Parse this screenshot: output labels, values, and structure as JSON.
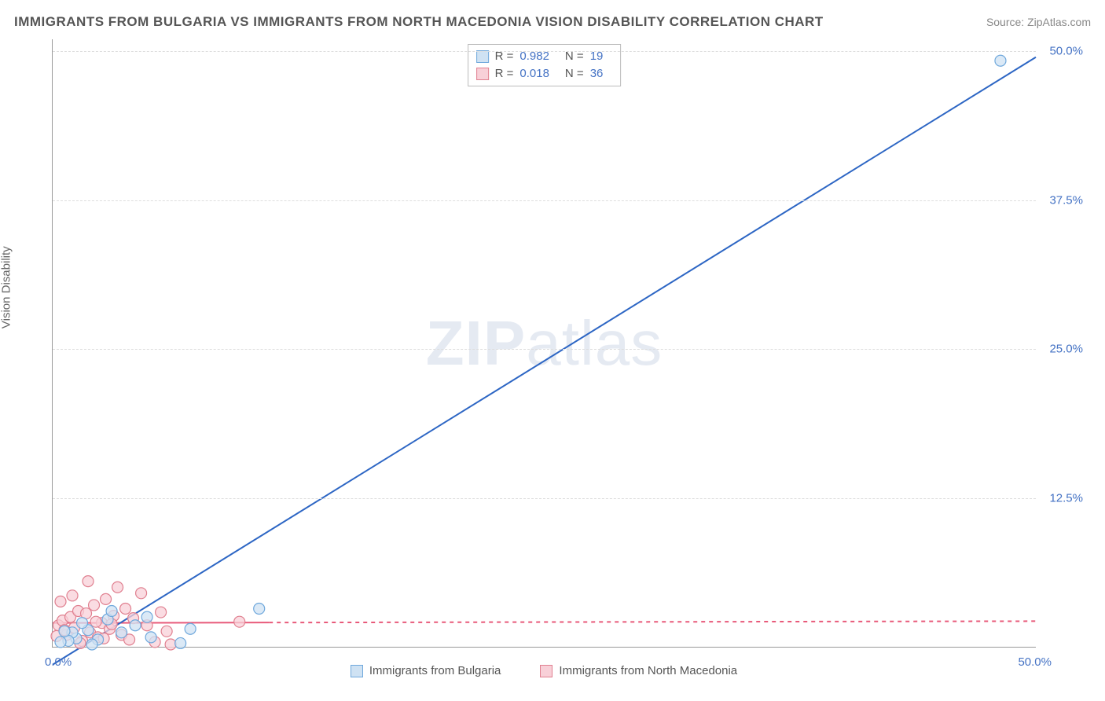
{
  "title": "IMMIGRANTS FROM BULGARIA VS IMMIGRANTS FROM NORTH MACEDONIA VISION DISABILITY CORRELATION CHART",
  "source": "Source: ZipAtlas.com",
  "y_axis_label": "Vision Disability",
  "watermark_bold": "ZIP",
  "watermark_light": "atlas",
  "chart": {
    "type": "scatter",
    "xlim": [
      0,
      50
    ],
    "ylim": [
      0,
      51
    ],
    "x_origin_label": "0.0%",
    "x_max_label": "50.0%",
    "y_ticks": [
      {
        "value": 12.5,
        "label": "12.5%"
      },
      {
        "value": 25.0,
        "label": "25.0%"
      },
      {
        "value": 37.5,
        "label": "37.5%"
      },
      {
        "value": 50.0,
        "label": "50.0%"
      }
    ],
    "grid_color": "#dddddd",
    "axis_color": "#999999",
    "background_color": "#ffffff",
    "series": [
      {
        "name": "Immigrants from Bulgaria",
        "marker_fill": "#cfe2f3",
        "marker_stroke": "#6fa8dc",
        "marker_radius": 7,
        "line_color": "#2d66c4",
        "line_width": 2,
        "line_dash": "none",
        "r": "0.982",
        "n": "19",
        "trend_line": {
          "x1": 0,
          "y1": -1.5,
          "x2": 50,
          "y2": 49.5
        },
        "points": [
          [
            48.2,
            49.2
          ],
          [
            10.5,
            3.2
          ],
          [
            7.0,
            1.5
          ],
          [
            5.0,
            0.8
          ],
          [
            4.2,
            1.8
          ],
          [
            3.5,
            1.2
          ],
          [
            2.8,
            2.3
          ],
          [
            2.3,
            0.6
          ],
          [
            1.8,
            1.4
          ],
          [
            1.5,
            2.0
          ],
          [
            1.2,
            0.7
          ],
          [
            1.0,
            1.2
          ],
          [
            0.8,
            0.5
          ],
          [
            0.6,
            1.3
          ],
          [
            0.4,
            0.4
          ],
          [
            3.0,
            3.0
          ],
          [
            6.5,
            0.3
          ],
          [
            4.8,
            2.5
          ],
          [
            2.0,
            0.2
          ]
        ]
      },
      {
        "name": "Immigrants from North Macedonia",
        "marker_fill": "#f8d0d8",
        "marker_stroke": "#e08090",
        "marker_radius": 7,
        "line_color": "#e85a7a",
        "line_width": 2,
        "line_dash": "5,5",
        "line_solid_until_x": 11,
        "r": "0.018",
        "n": "36",
        "trend_line": {
          "x1": 0,
          "y1": 2.0,
          "x2": 50,
          "y2": 2.15
        },
        "points": [
          [
            0.3,
            1.8
          ],
          [
            0.5,
            2.2
          ],
          [
            0.7,
            1.0
          ],
          [
            0.9,
            2.5
          ],
          [
            1.1,
            1.6
          ],
          [
            1.3,
            3.0
          ],
          [
            1.5,
            0.5
          ],
          [
            1.7,
            2.8
          ],
          [
            1.9,
            1.2
          ],
          [
            2.1,
            3.5
          ],
          [
            2.3,
            0.8
          ],
          [
            2.5,
            2.0
          ],
          [
            2.7,
            4.0
          ],
          [
            2.9,
            1.5
          ],
          [
            3.1,
            2.6
          ],
          [
            3.3,
            5.0
          ],
          [
            3.5,
            1.0
          ],
          [
            3.7,
            3.2
          ],
          [
            3.9,
            0.6
          ],
          [
            4.1,
            2.4
          ],
          [
            4.5,
            4.5
          ],
          [
            4.8,
            1.8
          ],
          [
            5.2,
            0.4
          ],
          [
            5.5,
            2.9
          ],
          [
            5.8,
            1.3
          ],
          [
            0.2,
            0.9
          ],
          [
            0.4,
            3.8
          ],
          [
            0.6,
            1.4
          ],
          [
            1.0,
            4.3
          ],
          [
            1.4,
            0.3
          ],
          [
            1.8,
            5.5
          ],
          [
            2.2,
            2.1
          ],
          [
            2.6,
            0.7
          ],
          [
            9.5,
            2.1
          ],
          [
            6.0,
            0.2
          ],
          [
            3.0,
            1.9
          ]
        ]
      }
    ]
  },
  "top_legend": {
    "r_label": "R =",
    "n_label": "N ="
  },
  "bottom_legend": {
    "items": [
      {
        "label": "Immigrants from Bulgaria",
        "fill": "#cfe2f3",
        "stroke": "#6fa8dc"
      },
      {
        "label": "Immigrants from North Macedonia",
        "fill": "#f8d0d8",
        "stroke": "#e08090"
      }
    ]
  }
}
